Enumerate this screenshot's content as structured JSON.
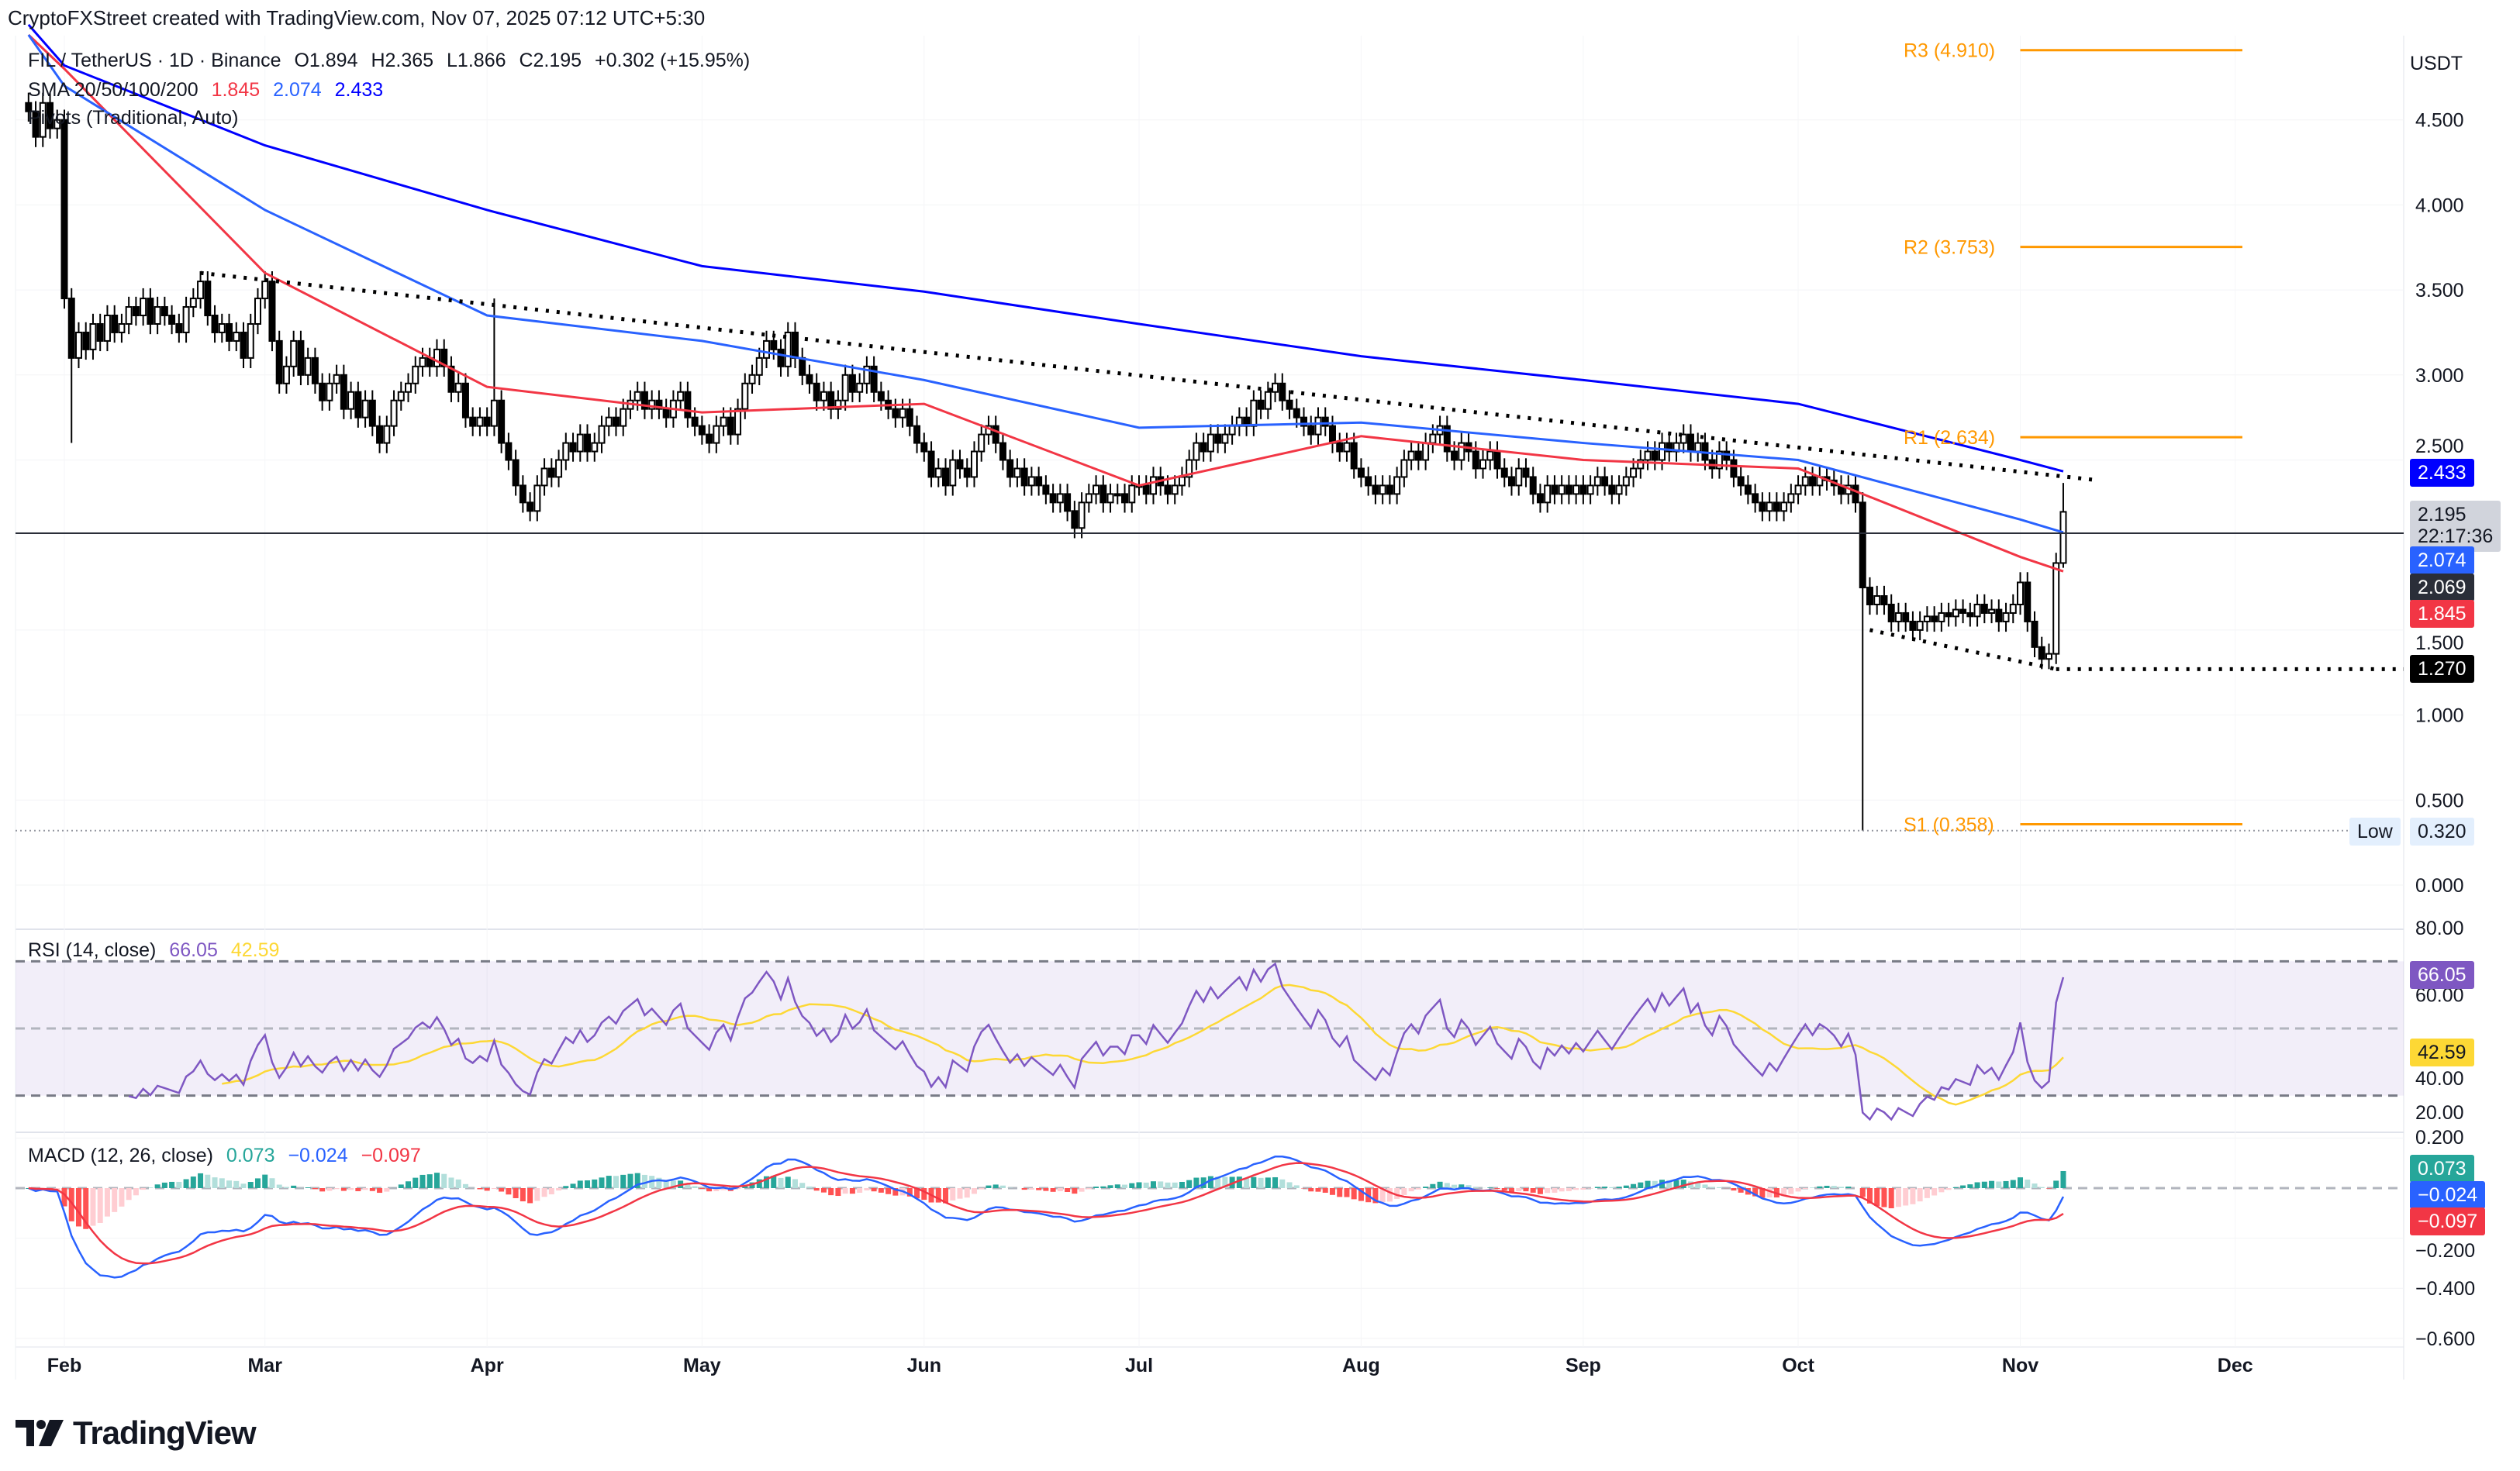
{
  "attribution": "CryptoFXStreet created with TradingView.com, Nov 07, 2025 07:12 UTC+5:30",
  "legend": {
    "symbol": "FIL / TetherUS · 1D · Binance",
    "open": "O1.894",
    "high": "H2.365",
    "low": "L1.866",
    "close": "C2.195",
    "change": "+0.302 (+15.95%)",
    "sma_label": "SMA 20/50/100/200",
    "sma_values": [
      "1.845",
      "2.074",
      "2.433"
    ],
    "pivots_label": "Pivots (Traditional, Auto)"
  },
  "currency": "USDT",
  "colors": {
    "sma_red": "#f23645",
    "sma_lightblue": "#2962ff",
    "sma_blue": "#0000ff",
    "pivot": "#ff9800",
    "rsi": "#7e57c2",
    "rsi_ma": "#fdd835",
    "macd": "#2962ff",
    "signal": "#f23645",
    "hist_up": "#26a69a",
    "hist_down": "#ff5252"
  },
  "chart_data": [
    {
      "type": "candlestick",
      "title": "FIL / TetherUS · 1D · Binance",
      "x_tick_labels": [
        "Feb",
        "Mar",
        "Apr",
        "May",
        "Jun",
        "Jul",
        "Aug",
        "Sep",
        "Oct",
        "Nov",
        "Dec"
      ],
      "y_tick_labels": [
        "4.500",
        "4.000",
        "3.500",
        "3.000",
        "2.500",
        "1.500",
        "1.000",
        "0.500",
        "0.000"
      ],
      "ylim": [
        0,
        5.2
      ],
      "grid": true,
      "candles_by_month": [
        {
          "month": "Jan",
          "first_day": 27,
          "closes": [
            4.55,
            4.4,
            4.6,
            4.45,
            4.5
          ]
        },
        {
          "month": "Feb",
          "first_day": 1,
          "closes": [
            3.45,
            3.1,
            3.25,
            3.15,
            3.3,
            3.2,
            3.35,
            3.25,
            3.3,
            3.4,
            3.35,
            3.45,
            3.3,
            3.4,
            3.35,
            3.3,
            3.25,
            3.4,
            3.45,
            3.55,
            3.35,
            3.25,
            3.3,
            3.2,
            3.25,
            3.1,
            3.3,
            3.45
          ]
        },
        {
          "month": "Mar",
          "first_day": 1,
          "closes": [
            3.55,
            3.2,
            2.95,
            3.05,
            3.2,
            3.0,
            3.1,
            2.95,
            2.85,
            2.95,
            3.0,
            2.8,
            2.9,
            2.75,
            2.85,
            2.7,
            2.6,
            2.7,
            2.85,
            2.9,
            2.95,
            3.05,
            3.1,
            3.05,
            3.15,
            3.05,
            2.9,
            2.95,
            2.75,
            2.7,
            2.75
          ]
        },
        {
          "month": "Apr",
          "first_day": 1,
          "closes": [
            2.7,
            2.85,
            2.6,
            2.5,
            2.35,
            2.25,
            2.2,
            2.35,
            2.45,
            2.4,
            2.5,
            2.6,
            2.55,
            2.65,
            2.55,
            2.6,
            2.7,
            2.75,
            2.7,
            2.8,
            2.85,
            2.9,
            2.8,
            2.85,
            2.8,
            2.75,
            2.85,
            2.9,
            2.75,
            2.7
          ]
        },
        {
          "month": "May",
          "first_day": 1,
          "closes": [
            2.65,
            2.6,
            2.7,
            2.75,
            2.65,
            2.8,
            2.95,
            3.0,
            3.1,
            3.2,
            3.15,
            3.05,
            3.25,
            3.1,
            3.0,
            2.95,
            2.85,
            2.9,
            2.8,
            2.85,
            3.0,
            2.9,
            2.95,
            3.05,
            2.9,
            2.85,
            2.8,
            2.75,
            2.8,
            2.7,
            2.6
          ]
        },
        {
          "month": "Jun",
          "first_day": 1,
          "closes": [
            2.55,
            2.4,
            2.45,
            2.35,
            2.5,
            2.45,
            2.4,
            2.55,
            2.65,
            2.7,
            2.6,
            2.5,
            2.4,
            2.45,
            2.35,
            2.4,
            2.35,
            2.3,
            2.25,
            2.3,
            2.2,
            2.1,
            2.25,
            2.3,
            2.35,
            2.25,
            2.3,
            2.3,
            2.25,
            2.35
          ]
        },
        {
          "month": "Jul",
          "first_day": 1,
          "closes": [
            2.35,
            2.3,
            2.4,
            2.35,
            2.3,
            2.35,
            2.4,
            2.5,
            2.6,
            2.55,
            2.65,
            2.6,
            2.65,
            2.7,
            2.75,
            2.7,
            2.85,
            2.8,
            2.9,
            2.95,
            2.85,
            2.8,
            2.75,
            2.7,
            2.65,
            2.75,
            2.7,
            2.6,
            2.55,
            2.6,
            2.45
          ]
        },
        {
          "month": "Aug",
          "first_day": 1,
          "closes": [
            2.4,
            2.35,
            2.3,
            2.35,
            2.3,
            2.4,
            2.5,
            2.55,
            2.5,
            2.6,
            2.65,
            2.7,
            2.55,
            2.5,
            2.6,
            2.55,
            2.45,
            2.5,
            2.55,
            2.45,
            2.4,
            2.35,
            2.45,
            2.4,
            2.3,
            2.25,
            2.35,
            2.3,
            2.35,
            2.3,
            2.35
          ]
        },
        {
          "month": "Sep",
          "first_day": 1,
          "closes": [
            2.3,
            2.35,
            2.4,
            2.35,
            2.3,
            2.35,
            2.4,
            2.45,
            2.5,
            2.55,
            2.5,
            2.6,
            2.55,
            2.6,
            2.65,
            2.55,
            2.6,
            2.5,
            2.45,
            2.55,
            2.5,
            2.4,
            2.35,
            2.3,
            2.25,
            2.2,
            2.25,
            2.2,
            2.25,
            2.3
          ]
        },
        {
          "month": "Oct",
          "first_day": 1,
          "closes": [
            2.35,
            2.4,
            2.35,
            2.4,
            2.38,
            2.35,
            2.3,
            2.35,
            2.25,
            1.75,
            1.65,
            1.7,
            1.65,
            1.55,
            1.6,
            1.55,
            1.5,
            1.55,
            1.58,
            1.55,
            1.6,
            1.58,
            1.62,
            1.6,
            1.58,
            1.65,
            1.6,
            1.62,
            1.55,
            1.6,
            1.65
          ]
        },
        {
          "month": "Nov",
          "first_day": 1,
          "closes": [
            1.78,
            1.55,
            1.4,
            1.33,
            1.36,
            1.894,
            2.195
          ]
        }
      ],
      "notable_wicks": [
        {
          "date": "Feb 2",
          "low": 2.6
        },
        {
          "date": "Apr 2",
          "high": 3.45
        },
        {
          "date": "Oct 10",
          "low": 0.32
        },
        {
          "date": "Nov 7",
          "high": 2.365,
          "low": 1.866
        }
      ],
      "sma_series": [
        {
          "name": "SMA",
          "color": "#f23645",
          "last": 1.845,
          "points": [
            [
              "Jan 27",
              5.0
            ],
            [
              "Feb 1",
              4.8
            ],
            [
              "Mar 1",
              3.6
            ],
            [
              "Apr 1",
              2.93
            ],
            [
              "May 1",
              2.78
            ],
            [
              "Jun 1",
              2.83
            ],
            [
              "Jul 1",
              2.35
            ],
            [
              "Aug 1",
              2.64
            ],
            [
              "Sep 1",
              2.5
            ],
            [
              "Oct 1",
              2.45
            ],
            [
              "Oct 10",
              2.3
            ],
            [
              "Nov 1",
              1.93
            ],
            [
              "Nov 7",
              1.845
            ]
          ]
        },
        {
          "name": "SMA",
          "color": "#2962ff",
          "last": 2.074,
          "points": [
            [
              "Jan 27",
              5.0
            ],
            [
              "Feb 1",
              4.7
            ],
            [
              "Mar 1",
              3.97
            ],
            [
              "Apr 1",
              3.35
            ],
            [
              "May 1",
              3.2
            ],
            [
              "Jun 1",
              2.97
            ],
            [
              "Jul 1",
              2.69
            ],
            [
              "Aug 1",
              2.72
            ],
            [
              "Sep 1",
              2.6
            ],
            [
              "Oct 1",
              2.5
            ],
            [
              "Nov 1",
              2.15
            ],
            [
              "Nov 7",
              2.074
            ]
          ]
        },
        {
          "name": "SMA",
          "color": "#0000ff",
          "last": 2.433,
          "points": [
            [
              "Jan 27",
              5.06
            ],
            [
              "Feb 1",
              4.82
            ],
            [
              "Mar 1",
              4.35
            ],
            [
              "Apr 1",
              3.97
            ],
            [
              "May 1",
              3.64
            ],
            [
              "Jun 1",
              3.49
            ],
            [
              "Jul 1",
              3.3
            ],
            [
              "Aug 1",
              3.11
            ],
            [
              "Sep 1",
              2.97
            ],
            [
              "Oct 1",
              2.83
            ],
            [
              "Nov 1",
              2.5
            ],
            [
              "Nov 7",
              2.433
            ]
          ]
        }
      ],
      "pivots": [
        {
          "label": "R3 (4.910)",
          "value": 4.91
        },
        {
          "label": "R2 (3.753)",
          "value": 3.753
        },
        {
          "label": "R1 (2.634)",
          "value": 2.634
        },
        {
          "label": "S1 (0.358)",
          "value": 0.358
        }
      ],
      "trendlines": [
        {
          "kind": "descending resistance",
          "from": [
            "Feb 20",
            3.6
          ],
          "to": [
            "Nov 12",
            2.38
          ]
        },
        {
          "kind": "descending support",
          "from": [
            "Oct 11",
            1.5
          ],
          "to": [
            "Nov 6",
            1.27
          ]
        },
        {
          "kind": "horizontal support",
          "from": [
            "Nov 6",
            1.27
          ],
          "value": 1.27
        }
      ],
      "horizontal_line": 2.069,
      "low_line": 0.32,
      "price_labels": {
        "sma200": "2.433",
        "last": "2.195",
        "countdown": "22:17:36",
        "sma100": "2.074",
        "hline": "2.069",
        "sma50": "1.845",
        "support": "1.270",
        "low_word": "Low",
        "low": "0.320"
      }
    },
    {
      "type": "line",
      "title": "RSI (14, close)",
      "values_text": [
        "66.05",
        "42.59"
      ],
      "series": [
        {
          "name": "RSI"
        },
        {
          "name": "RSI-based MA"
        }
      ],
      "y_tick_labels": [
        "80.00",
        "60.00",
        "40.00",
        "20.00"
      ],
      "ylim": [
        20,
        80
      ],
      "bands": [
        70,
        50,
        30
      ]
    },
    {
      "type": "bar",
      "title": "MACD (12, 26, close)",
      "values_text": [
        "0.073",
        "−0.024",
        "−0.097"
      ],
      "y_tick_labels": [
        "0.200",
        "−0.200",
        "−0.400",
        "−0.600"
      ],
      "ylim": [
        -0.62,
        0.22
      ]
    }
  ],
  "logo_text": "TradingView"
}
